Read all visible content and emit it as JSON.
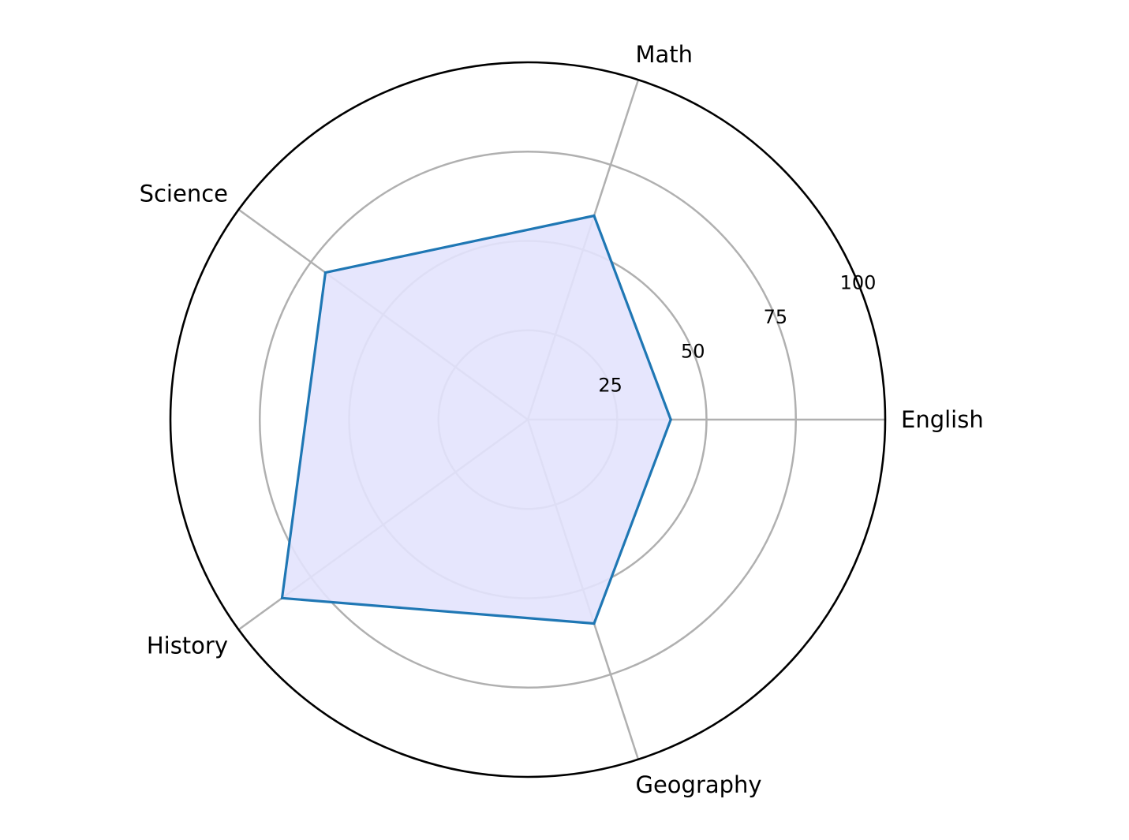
{
  "chart_data": {
    "type": "radar",
    "title": "",
    "categories": [
      "English",
      "Math",
      "Science",
      "History",
      "Geography"
    ],
    "series": [
      {
        "values": [
          40,
          60,
          70,
          85,
          60
        ],
        "line_color": "#1f77b4",
        "fill_color": "#e3e3fd"
      }
    ],
    "rlim": [
      0,
      100
    ],
    "r_ticks": [
      25,
      50,
      75,
      100
    ],
    "r_tick_labels": [
      "25",
      "50",
      "75",
      "100"
    ],
    "grid": true,
    "colors": {
      "grid": "#b0b0b0",
      "outer_ring": "#000000"
    }
  }
}
